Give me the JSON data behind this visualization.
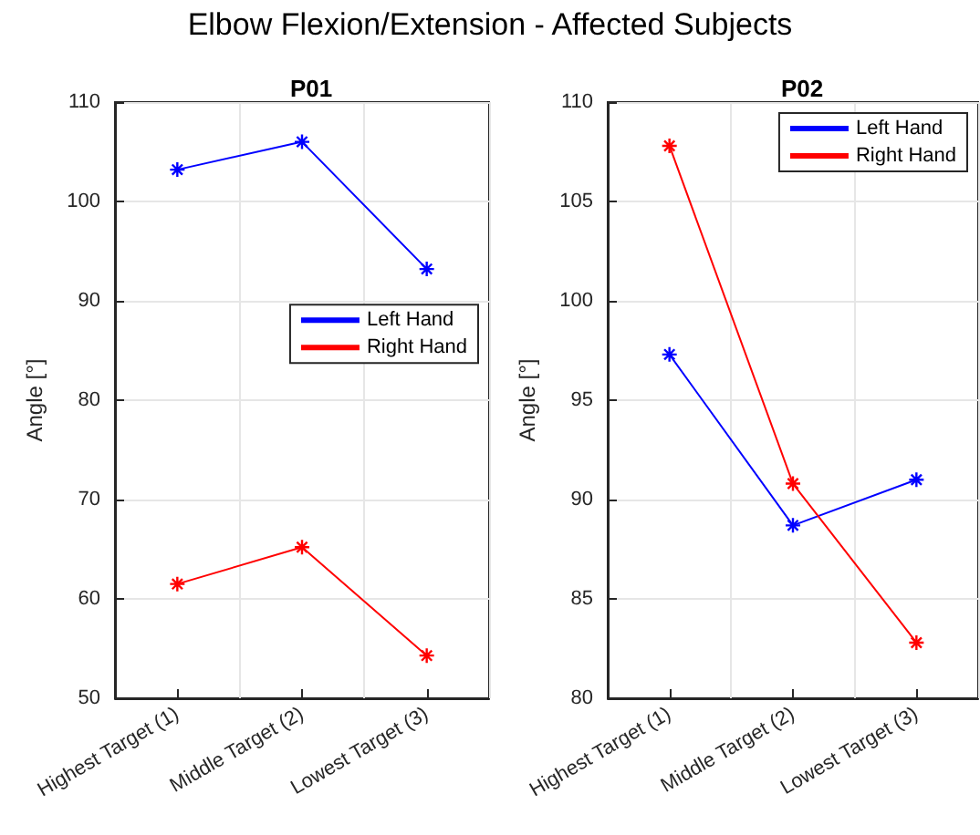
{
  "chart_data": [
    {
      "type": "line",
      "title": "P01",
      "ylabel": "Angle [°]",
      "annotations": [
        "Elbow Flexion/Extension - Affected Subjects"
      ],
      "categories": [
        "Highest Target (1)",
        "Middle Target (2)",
        "Lowest Target (3)"
      ],
      "series": [
        {
          "name": "Left Hand",
          "color": "#0000ff",
          "values": [
            103.2,
            106.0,
            93.2
          ]
        },
        {
          "name": "Right Hand",
          "color": "#ff0000",
          "values": [
            61.5,
            65.2,
            54.3
          ]
        }
      ],
      "ylim": [
        50,
        110
      ],
      "yticks": [
        50,
        60,
        70,
        80,
        90,
        100,
        110
      ],
      "grid": true,
      "legend": "right",
      "marker": "cross",
      "line_style": "solid"
    },
    {
      "type": "line",
      "title": "P02",
      "ylabel": "Angle [°]",
      "categories": [
        "Highest Target (1)",
        "Middle Target (2)",
        "Lowest Target (3)"
      ],
      "series": [
        {
          "name": "Left Hand",
          "color": "#0000ff",
          "values": [
            97.3,
            88.7,
            91.0
          ]
        },
        {
          "name": "Right Hand",
          "color": "#ff0000",
          "values": [
            107.8,
            90.8,
            82.8
          ]
        }
      ],
      "ylim": [
        80,
        110
      ],
      "yticks": [
        80,
        85,
        90,
        95,
        100,
        105,
        110
      ],
      "grid": true,
      "legend": "top right",
      "marker": "cross",
      "line_style": "solid"
    }
  ]
}
